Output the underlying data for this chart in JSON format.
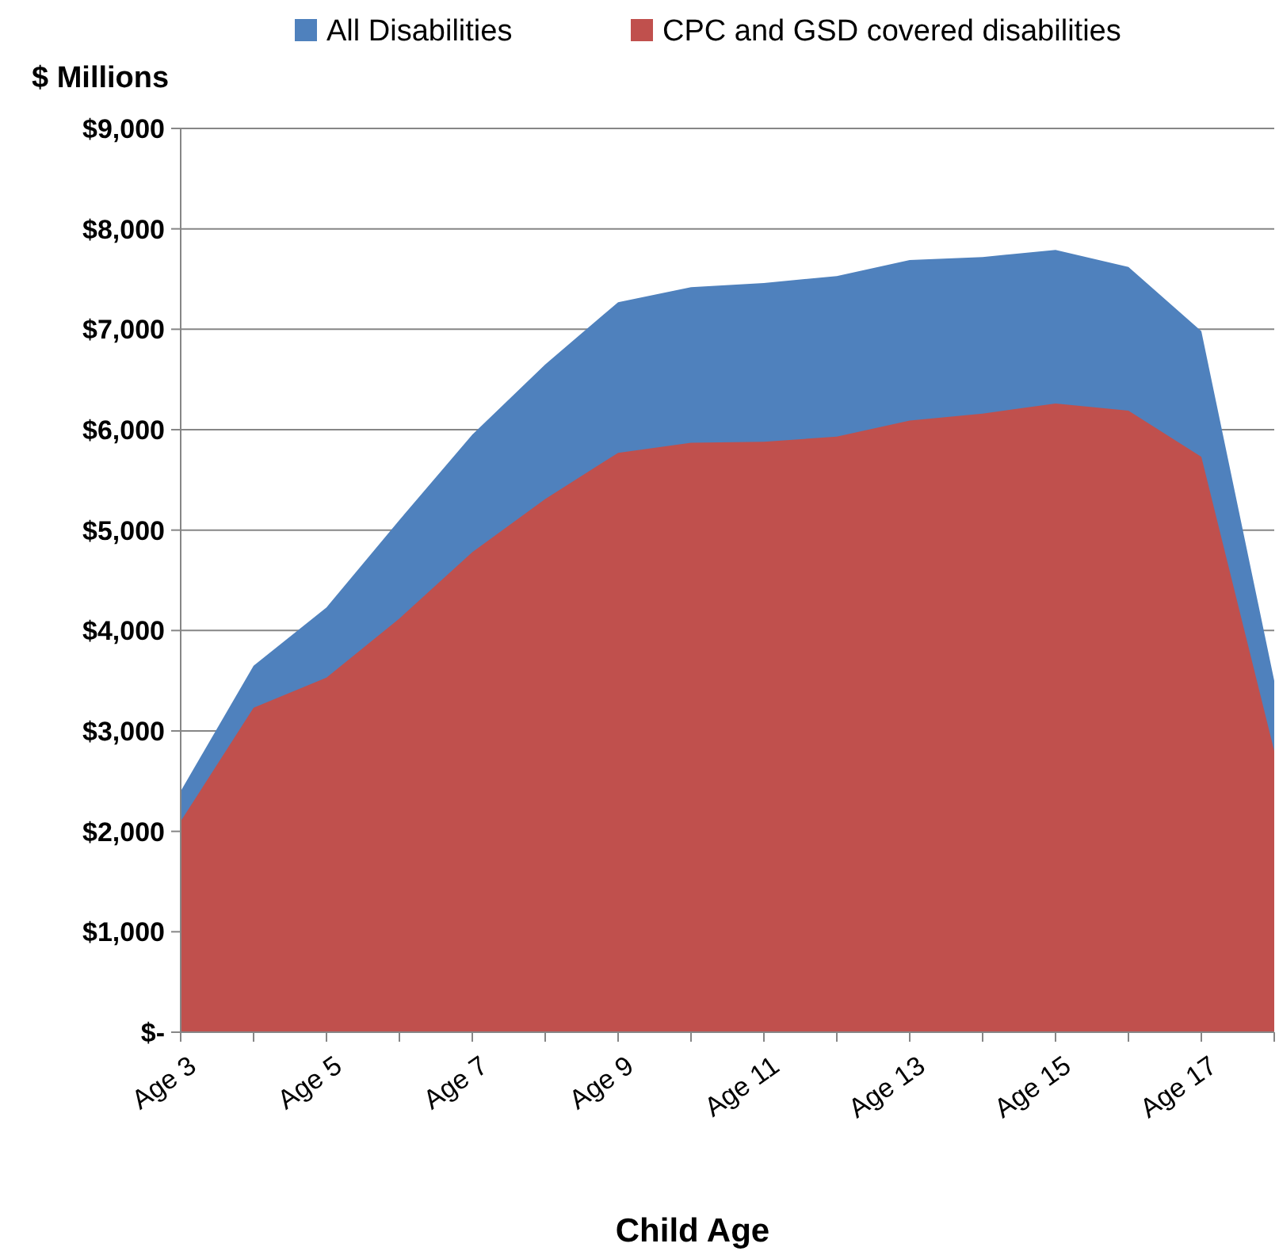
{
  "chart_data": {
    "type": "area",
    "ylabel": "$ Millions",
    "xlabel": "Child Age",
    "categories": [
      "Age 3",
      null,
      "Age 5",
      null,
      "Age 7",
      null,
      "Age 9",
      null,
      "Age 11",
      null,
      "Age 13",
      null,
      "Age 15",
      null,
      "Age 17",
      null
    ],
    "series": [
      {
        "name": "All Disabilities",
        "color": "#4f81bd",
        "values": [
          2400,
          3650,
          4230,
          5100,
          5950,
          6650,
          7270,
          7420,
          7460,
          7530,
          7690,
          7720,
          7790,
          7620,
          6980,
          3500
        ]
      },
      {
        "name": "CPC and GSD covered disabilities",
        "color": "#c0504d",
        "values": [
          2100,
          3230,
          3530,
          4120,
          4780,
          5310,
          5770,
          5870,
          5880,
          5930,
          6090,
          6160,
          6260,
          6190,
          5730,
          2800
        ]
      }
    ],
    "ylim": [
      0,
      9000
    ],
    "yticks": [
      {
        "value": 0,
        "label": "$-"
      },
      {
        "value": 1000,
        "label": "$1,000"
      },
      {
        "value": 2000,
        "label": "$2,000"
      },
      {
        "value": 3000,
        "label": "$3,000"
      },
      {
        "value": 4000,
        "label": "$4,000"
      },
      {
        "value": 5000,
        "label": "$5,000"
      },
      {
        "value": 6000,
        "label": "$6,000"
      },
      {
        "value": 7000,
        "label": "$7,000"
      },
      {
        "value": 8000,
        "label": "$8,000"
      },
      {
        "value": 9000,
        "label": "$9,000"
      }
    ],
    "grid": "y",
    "legend": "top"
  }
}
